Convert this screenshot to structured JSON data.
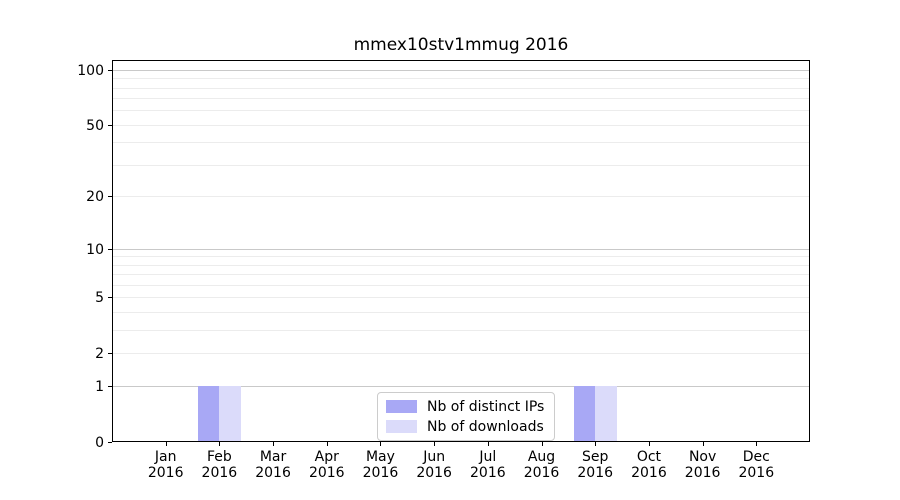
{
  "figure": {
    "background": "#ffffff",
    "text_color": "#000000",
    "spine_color": "#000000"
  },
  "chart_data": {
    "type": "bar",
    "title": "mmex10stv1mmug 2016",
    "categories": [
      "Jan 2016",
      "Feb 2016",
      "Mar 2016",
      "Apr 2016",
      "May 2016",
      "Jun 2016",
      "Jul 2016",
      "Aug 2016",
      "Sep 2016",
      "Oct 2016",
      "Nov 2016",
      "Dec 2016"
    ],
    "series": [
      {
        "name": "Nb of distinct IPs",
        "color": "#a8a8f5",
        "values": [
          0,
          1,
          0,
          0,
          0,
          0,
          0,
          0,
          1,
          0,
          0,
          0
        ]
      },
      {
        "name": "Nb of downloads",
        "color": "#dbdbfa",
        "values": [
          0,
          1,
          0,
          0,
          0,
          0,
          0,
          0,
          1,
          0,
          0,
          0
        ]
      }
    ],
    "xlabel": "",
    "ylabel": "",
    "y_scale": "log1p",
    "y_ticks": [
      0,
      1,
      2,
      5,
      10,
      20,
      50,
      100
    ],
    "ylim": [
      0,
      113
    ],
    "major_grid_values": [
      1,
      10,
      100
    ],
    "minor_grid_values": [
      2,
      3,
      4,
      5,
      6,
      7,
      8,
      9,
      20,
      30,
      40,
      50,
      60,
      70,
      80,
      90
    ],
    "grid": {
      "major_color": "#c9c9c9",
      "minor_color": "#ececec"
    },
    "legend_position": "lower center"
  }
}
